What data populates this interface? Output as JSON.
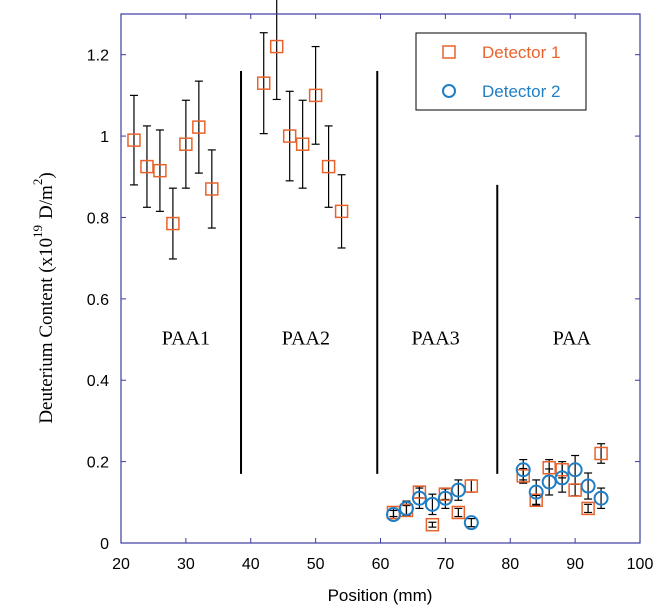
{
  "chart_data": {
    "type": "scatter",
    "xlabel": "Position (mm)",
    "ylabel": {
      "prefix": "Deuterium Content (x10",
      "exponent": "19",
      "unit": "D/m",
      "unit_exponent": "2",
      "suffix": ")"
    },
    "xlim": [
      20,
      100
    ],
    "ylim": [
      0,
      1.3
    ],
    "xticks": [
      20,
      30,
      40,
      50,
      60,
      70,
      80,
      90,
      100
    ],
    "yticks": [
      0,
      0.2,
      0.4,
      0.6,
      0.8,
      1,
      1.2
    ],
    "xtick_labels": [
      "20",
      "30",
      "40",
      "50",
      "60",
      "70",
      "80",
      "90",
      "100"
    ],
    "ytick_labels": [
      "0",
      "0.2",
      "0.4",
      "0.6",
      "0.8",
      "1",
      "1.2"
    ],
    "grid": false,
    "legend_position": "top-right",
    "region_dividers": [
      {
        "x": 38.5,
        "y_min": 0.17,
        "y_max": 1.16
      },
      {
        "x": 59.5,
        "y_min": 0.17,
        "y_max": 1.16
      },
      {
        "x": 78,
        "y_min": 0.17,
        "y_max": 0.88
      }
    ],
    "region_labels": [
      {
        "text": "PAA1",
        "x": 30,
        "y": 0.505
      },
      {
        "text": "PAA2",
        "x": 48.5,
        "y": 0.505
      },
      {
        "text": "PAA3",
        "x": 68.5,
        "y": 0.505
      },
      {
        "text": "PAA",
        "x": 89.5,
        "y": 0.505
      }
    ],
    "series": [
      {
        "name": "Detector 1",
        "marker": "square",
        "color": "#e8632b",
        "points": [
          {
            "x": 22,
            "y": 0.99,
            "err": 0.11
          },
          {
            "x": 24,
            "y": 0.925,
            "err": 0.1
          },
          {
            "x": 26,
            "y": 0.915,
            "err": 0.1
          },
          {
            "x": 28,
            "y": 0.785,
            "err": 0.087
          },
          {
            "x": 30,
            "y": 0.98,
            "err": 0.108
          },
          {
            "x": 32,
            "y": 1.022,
            "err": 0.113
          },
          {
            "x": 34,
            "y": 0.87,
            "err": 0.096
          },
          {
            "x": 42,
            "y": 1.13,
            "err": 0.124
          },
          {
            "x": 44,
            "y": 1.22,
            "err": 0.13
          },
          {
            "x": 46,
            "y": 1.0,
            "err": 0.11
          },
          {
            "x": 48,
            "y": 0.98,
            "err": 0.108
          },
          {
            "x": 50,
            "y": 1.1,
            "err": 0.12
          },
          {
            "x": 52,
            "y": 0.925,
            "err": 0.1
          },
          {
            "x": 54,
            "y": 0.815,
            "err": 0.09
          },
          {
            "x": 62,
            "y": 0.075,
            "err": 0.01
          },
          {
            "x": 64,
            "y": 0.08,
            "err": 0.012
          },
          {
            "x": 66,
            "y": 0.125,
            "err": 0.014
          },
          {
            "x": 68,
            "y": 0.045,
            "err": 0.006
          },
          {
            "x": 70,
            "y": 0.12,
            "err": 0.013
          },
          {
            "x": 72,
            "y": 0.075,
            "err": 0.01
          },
          {
            "x": 74,
            "y": 0.14,
            "err": 0.015
          },
          {
            "x": 82,
            "y": 0.165,
            "err": 0.018
          },
          {
            "x": 84,
            "y": 0.105,
            "err": 0.012
          },
          {
            "x": 86,
            "y": 0.185,
            "err": 0.02
          },
          {
            "x": 88,
            "y": 0.18,
            "err": 0.02
          },
          {
            "x": 90,
            "y": 0.13,
            "err": 0.014
          },
          {
            "x": 92,
            "y": 0.085,
            "err": 0.01
          },
          {
            "x": 94,
            "y": 0.22,
            "err": 0.024
          }
        ]
      },
      {
        "name": "Detector 2",
        "marker": "circle",
        "color": "#1f7ec5",
        "points": [
          {
            "x": 62,
            "y": 0.07,
            "err": 0.01
          },
          {
            "x": 64,
            "y": 0.085,
            "err": 0.018
          },
          {
            "x": 66,
            "y": 0.11,
            "err": 0.025
          },
          {
            "x": 68,
            "y": 0.095,
            "err": 0.025
          },
          {
            "x": 70,
            "y": 0.11,
            "err": 0.025
          },
          {
            "x": 72,
            "y": 0.13,
            "err": 0.025
          },
          {
            "x": 74,
            "y": 0.05,
            "err": 0.01
          },
          {
            "x": 82,
            "y": 0.18,
            "err": 0.025
          },
          {
            "x": 84,
            "y": 0.125,
            "err": 0.03
          },
          {
            "x": 86,
            "y": 0.15,
            "err": 0.032
          },
          {
            "x": 88,
            "y": 0.16,
            "err": 0.035
          },
          {
            "x": 90,
            "y": 0.18,
            "err": 0.035
          },
          {
            "x": 92,
            "y": 0.14,
            "err": 0.032
          },
          {
            "x": 94,
            "y": 0.11,
            "err": 0.025
          }
        ]
      }
    ]
  }
}
